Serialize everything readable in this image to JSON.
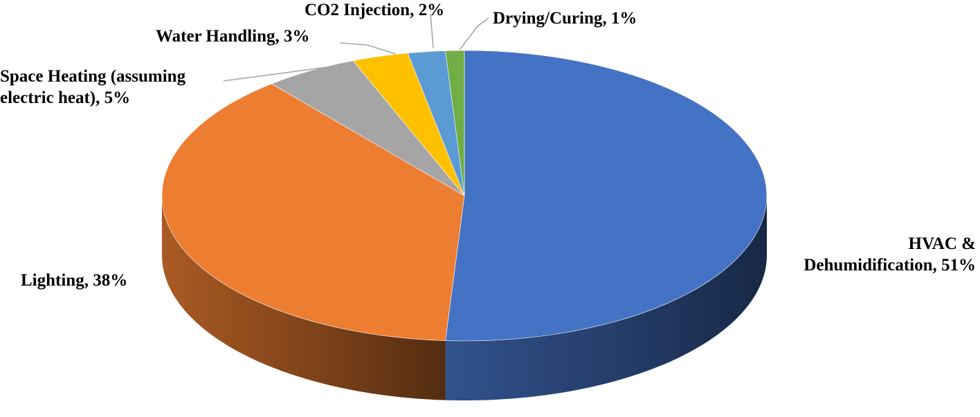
{
  "chart_data": {
    "type": "pie",
    "style": "3d",
    "title": "",
    "slices": [
      {
        "label": "HVAC & Dehumidification",
        "value": 51,
        "color": "#4472c4",
        "label_lines": [
          "HVAC &",
          "Dehumidification, 51%"
        ]
      },
      {
        "label": "Lighting",
        "value": 38,
        "color": "#ed7d31",
        "label_lines": [
          "Lighting, 38%"
        ]
      },
      {
        "label": "Space Heating (assuming electric heat)",
        "value": 5,
        "color": "#a5a5a5",
        "label_lines": [
          "Space Heating (assuming",
          "electric heat),  5%"
        ]
      },
      {
        "label": "Water Handling",
        "value": 3,
        "color": "#ffc000",
        "label_lines": [
          "Water Handling, 3%"
        ]
      },
      {
        "label": "CO2 Injection",
        "value": 2,
        "color": "#5b9bd5",
        "label_lines": [
          "CO2 Injection, 2%"
        ]
      },
      {
        "label": "Drying/Curing",
        "value": 1,
        "color": "#70ad47",
        "label_lines": [
          "Drying/Curing, 1%"
        ]
      }
    ],
    "data_labels": "category and percent, outside end",
    "legend": "none"
  }
}
